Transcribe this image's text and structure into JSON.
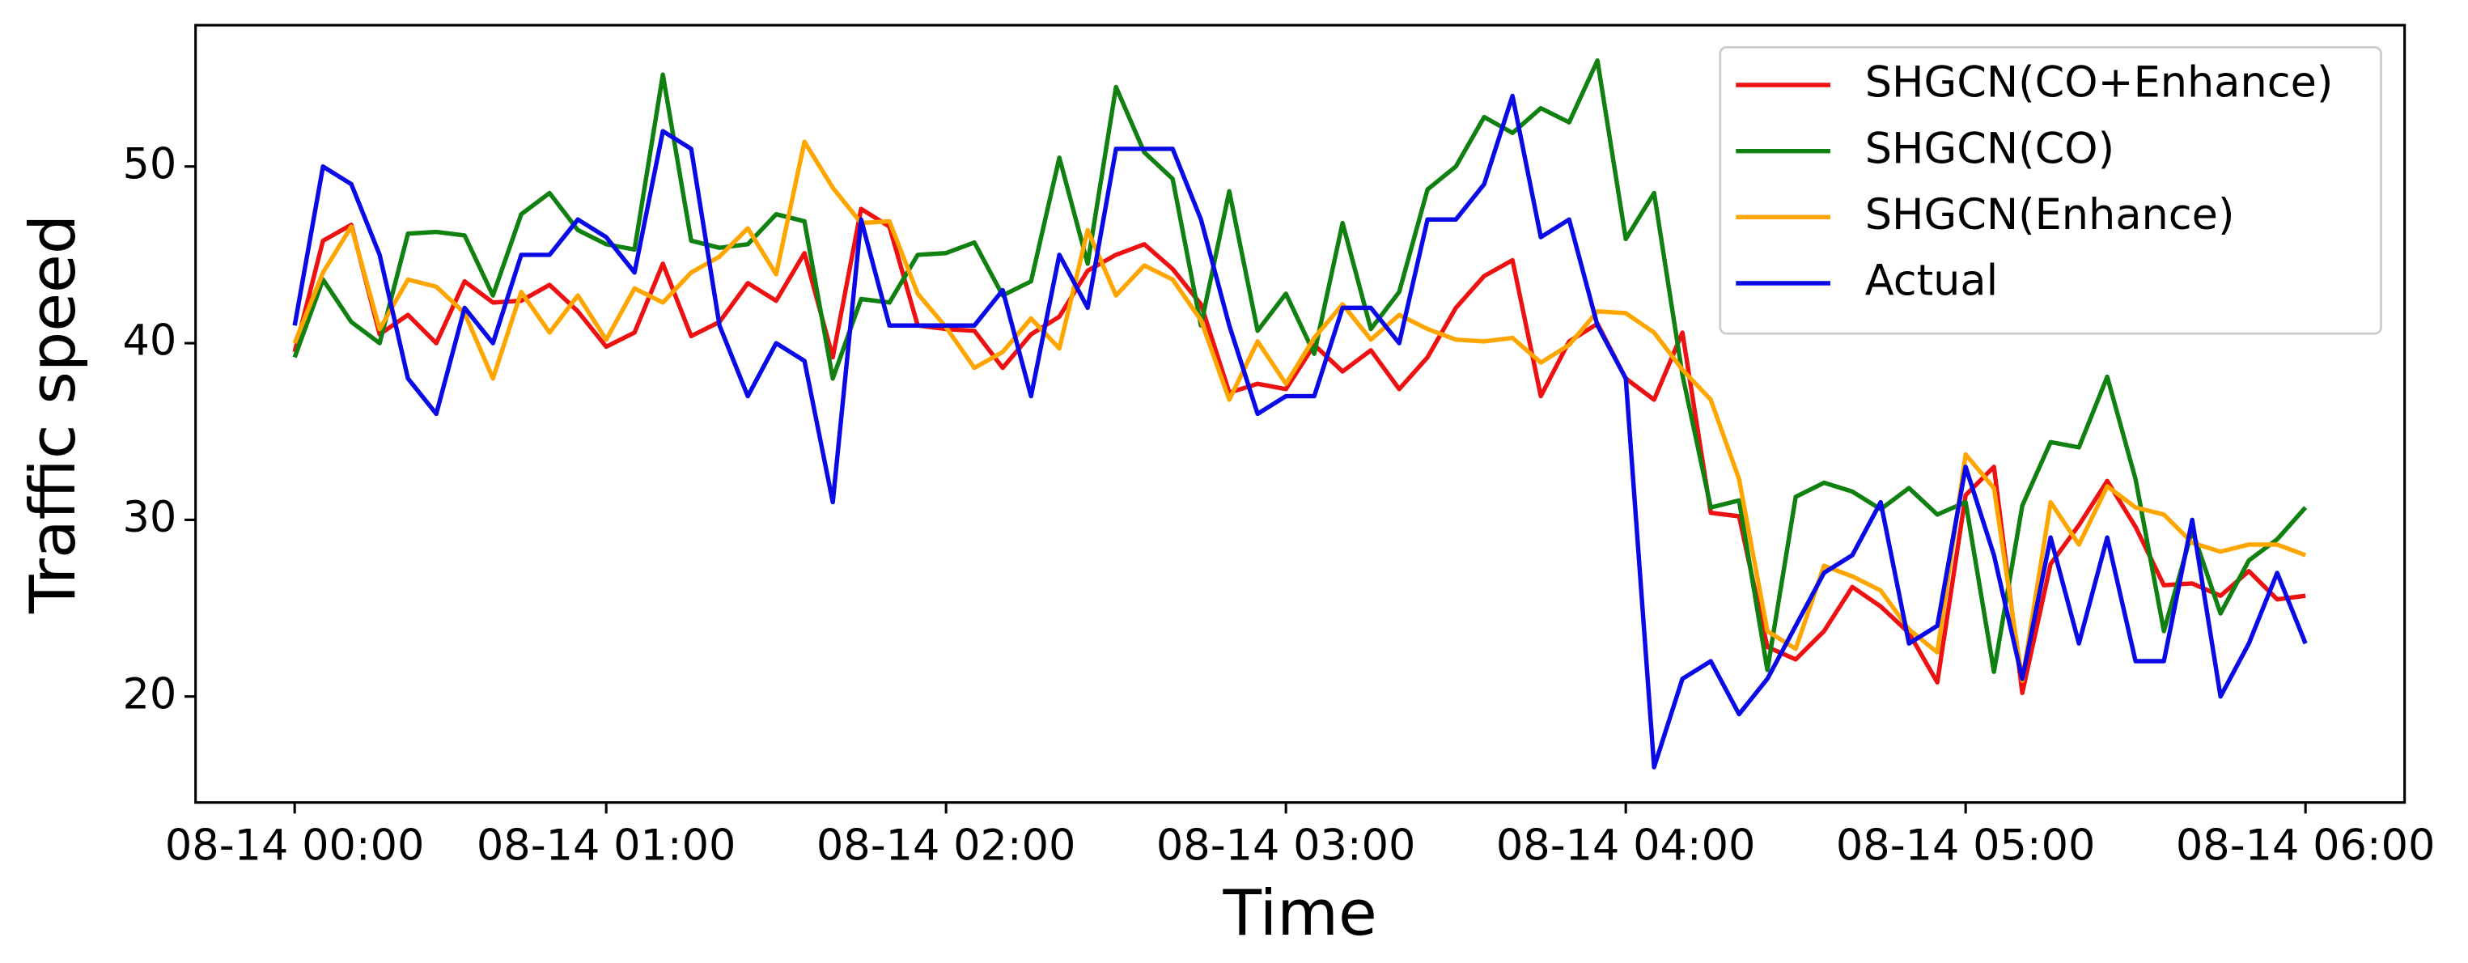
{
  "chart_data": {
    "type": "line",
    "x_label": "Time",
    "y_label": "Traffic speed",
    "x": [
      0,
      5,
      10,
      15,
      20,
      25,
      30,
      35,
      40,
      45,
      50,
      55,
      60,
      65,
      70,
      75,
      80,
      85,
      90,
      95,
      100,
      105,
      110,
      115,
      120,
      125,
      130,
      135,
      140,
      145,
      150,
      155,
      160,
      165,
      170,
      175,
      180,
      185,
      190,
      195,
      200,
      205,
      210,
      215,
      220,
      225,
      230,
      235,
      240,
      245,
      250,
      255,
      260,
      265,
      270,
      275,
      280,
      285,
      290,
      295,
      300,
      305,
      310,
      315,
      320,
      325,
      330,
      335,
      340,
      345,
      350,
      355
    ],
    "series": [
      {
        "name": "SHGCN(CO+Enhance)",
        "color": "#ee1111",
        "values": [
          39.5,
          45.8,
          46.7,
          40.5,
          41.6,
          40.0,
          43.5,
          42.3,
          42.4,
          43.3,
          41.8,
          39.8,
          40.6,
          44.5,
          40.4,
          41.2,
          43.4,
          42.4,
          45.1,
          39.2,
          47.6,
          46.6,
          41.0,
          40.8,
          40.7,
          38.6,
          40.5,
          41.5,
          44.1,
          45.0,
          45.6,
          44.2,
          42.2,
          37.2,
          37.7,
          37.4,
          39.9,
          38.4,
          39.6,
          37.4,
          39.2,
          42.0,
          43.8,
          44.7,
          37.0,
          40.1,
          41.1,
          38.0,
          36.8,
          40.6,
          30.4,
          30.2,
          22.8,
          22.1,
          23.7,
          26.2,
          25.1,
          23.6,
          20.8,
          31.4,
          33.0,
          20.2,
          27.5,
          29.7,
          32.2,
          29.6,
          26.3,
          26.4,
          25.7,
          27.1,
          25.5,
          25.7
        ]
      },
      {
        "name": "SHGCN(CO)",
        "color": "#108010",
        "values": [
          39.2,
          43.6,
          41.2,
          40.0,
          46.2,
          46.3,
          46.1,
          42.7,
          47.3,
          48.5,
          46.4,
          45.6,
          45.3,
          55.2,
          45.8,
          45.4,
          45.6,
          47.3,
          46.9,
          38.0,
          42.5,
          42.3,
          45.0,
          45.1,
          45.7,
          42.7,
          43.5,
          50.5,
          44.5,
          54.5,
          50.8,
          49.3,
          41.0,
          48.6,
          40.7,
          42.8,
          39.4,
          46.8,
          40.8,
          42.9,
          48.7,
          50.0,
          52.8,
          51.9,
          53.3,
          52.5,
          56.0,
          45.9,
          48.5,
          38.2,
          30.7,
          31.1,
          21.5,
          31.3,
          32.1,
          31.6,
          30.6,
          31.8,
          30.3,
          31.0,
          21.4,
          30.8,
          34.4,
          34.1,
          38.1,
          32.3,
          23.7,
          29.4,
          24.7,
          27.7,
          28.9,
          30.7
        ]
      },
      {
        "name": "SHGCN(Enhance)",
        "color": "#ffa500",
        "values": [
          40.0,
          44.0,
          46.6,
          40.8,
          43.6,
          43.2,
          41.7,
          38.0,
          42.9,
          40.6,
          42.7,
          40.2,
          43.1,
          42.3,
          44.0,
          44.9,
          46.5,
          43.9,
          51.4,
          48.8,
          46.8,
          46.9,
          42.8,
          40.9,
          38.6,
          39.5,
          41.4,
          39.7,
          46.4,
          42.7,
          44.4,
          43.6,
          41.3,
          36.8,
          40.1,
          37.7,
          40.3,
          42.2,
          40.2,
          41.6,
          40.8,
          40.2,
          40.1,
          40.3,
          38.9,
          39.9,
          41.8,
          41.7,
          40.6,
          38.5,
          36.8,
          32.3,
          23.7,
          22.7,
          27.4,
          26.8,
          26.0,
          23.8,
          22.5,
          33.7,
          31.8,
          20.9,
          31.0,
          28.6,
          31.9,
          30.7,
          30.3,
          28.7,
          28.2,
          28.6,
          28.6,
          28.0
        ]
      },
      {
        "name": "Actual",
        "color": "#0a0ae6",
        "values": [
          41,
          50,
          49,
          45,
          38,
          36,
          42,
          40,
          45,
          45,
          47,
          46,
          44,
          52,
          51,
          41,
          37,
          40,
          39,
          31,
          47,
          41,
          41,
          41,
          41,
          43,
          37,
          45,
          42,
          51,
          51,
          51,
          47,
          41,
          36,
          37,
          37,
          42,
          42,
          40,
          47,
          47,
          49,
          54,
          46,
          47,
          41,
          38,
          16,
          21,
          22,
          19,
          21,
          24,
          27,
          28,
          31,
          23,
          24,
          33,
          28,
          21,
          29,
          23,
          29,
          22,
          22,
          30,
          20,
          23,
          27,
          23
        ]
      }
    ],
    "xlim": [
      -17.5,
      372.5
    ],
    "xticks": [
      {
        "value": 0,
        "label": "08-14 00:00"
      },
      {
        "value": 55,
        "label": "08-14 01:00"
      },
      {
        "value": 115,
        "label": "08-14 02:00"
      },
      {
        "value": 175,
        "label": "08-14 03:00"
      },
      {
        "value": 235,
        "label": "08-14 04:00"
      },
      {
        "value": 295,
        "label": "08-14 05:00"
      },
      {
        "value": 355,
        "label": "08-14 06:00"
      }
    ],
    "ylim": [
      14,
      58
    ],
    "yticks": [
      20,
      30,
      40,
      50
    ],
    "grid": false,
    "legend": "upper-right"
  }
}
